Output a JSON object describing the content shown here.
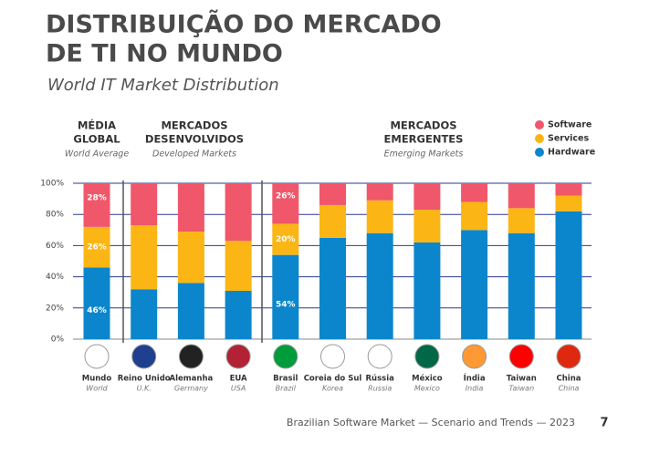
{
  "chart_data": {
    "type": "stacked_bar",
    "title_lines": [
      "DISTRIBUIÇÃO DO MERCADO",
      "DE TI NO MUNDO"
    ],
    "subtitle": "World IT Market Distribution",
    "groups": [
      {
        "lines": [
          "MÉDIA",
          "GLOBAL"
        ],
        "subtitle": "World Average"
      },
      {
        "lines": [
          "MERCADOS",
          "DESENVOLVIDOS"
        ],
        "subtitle": "Developed Markets"
      },
      {
        "lines": [
          "MERCADOS",
          "EMERGENTES"
        ],
        "subtitle": "Emerging Markets"
      }
    ],
    "categories": [
      "Mundo",
      "Reino Unido",
      "Alemanha",
      "EUA",
      "Brasil",
      "Coreia do Sul",
      "Rússia",
      "México",
      "Índia",
      "Taiwan",
      "China"
    ],
    "category_subtitles": [
      "World",
      "U.K.",
      "Germany",
      "USA",
      "Brazil",
      "Korea",
      "Russia",
      "Mexico",
      "India",
      "Taiwan",
      "China"
    ],
    "series": [
      {
        "name": "Software",
        "color": "#f0576a",
        "values": [
          28,
          27,
          31,
          37,
          26,
          14,
          11,
          17,
          12,
          16,
          8
        ],
        "value_labels": [
          "28%",
          null,
          null,
          null,
          "26%",
          null,
          null,
          null,
          null,
          null,
          null
        ]
      },
      {
        "name": "Services",
        "color": "#fbb615",
        "values": [
          26,
          41,
          33,
          32,
          20,
          21,
          21,
          21,
          18,
          16,
          10
        ],
        "value_labels": [
          "26%",
          null,
          null,
          null,
          "20%",
          null,
          null,
          null,
          null,
          null,
          null
        ]
      },
      {
        "name": "Hardware",
        "color": "#0b86cc",
        "values": [
          46,
          32,
          36,
          31,
          54,
          65,
          68,
          62,
          70,
          68,
          82
        ],
        "value_labels": [
          "46%",
          null,
          null,
          null,
          "54%",
          null,
          null,
          null,
          null,
          null,
          null
        ]
      }
    ],
    "ylim": [
      0,
      100
    ],
    "yticks": [
      {
        "value": 0,
        "label": "0%"
      },
      {
        "value": 20,
        "label": "20%"
      },
      {
        "value": 40,
        "label": "40%"
      },
      {
        "value": 60,
        "label": "60%"
      },
      {
        "value": 80,
        "label": "80%"
      },
      {
        "value": 100,
        "label": "100%"
      }
    ],
    "grid": true,
    "legend": "top-right",
    "footer": "Brazilian Software Market — Scenario and Trends — 2023",
    "page_number": "7"
  }
}
